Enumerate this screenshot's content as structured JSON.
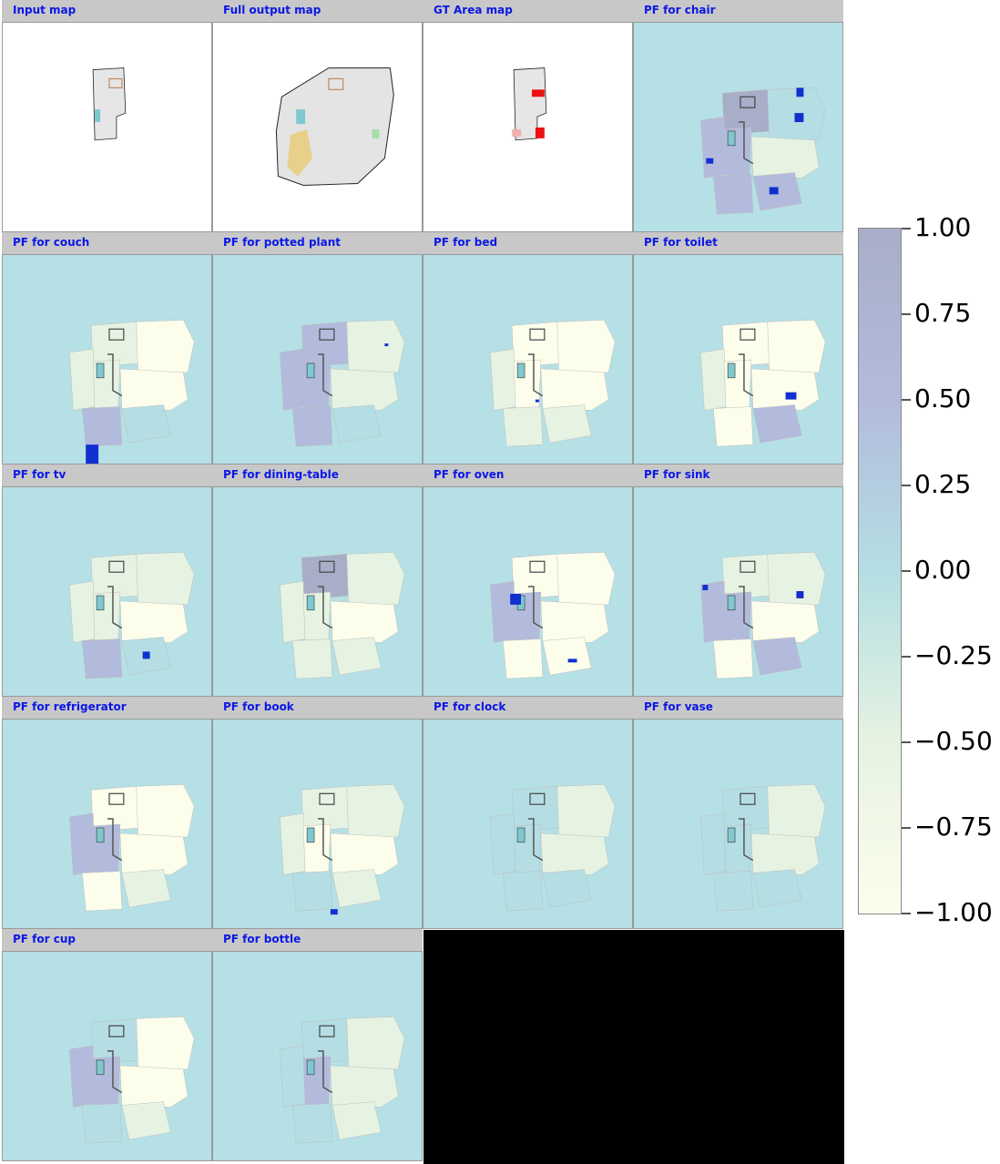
{
  "panels": [
    {
      "title": "Input map",
      "kind": "input",
      "highlight": null
    },
    {
      "title": "Full output map",
      "kind": "full",
      "highlight": null
    },
    {
      "title": "GT Area map",
      "kind": "gt",
      "highlight": null
    },
    {
      "title": "PF for chair",
      "kind": "pf",
      "highlight": "chair"
    },
    {
      "title": "PF for couch",
      "kind": "pf",
      "highlight": "couch"
    },
    {
      "title": "PF for potted plant",
      "kind": "pf",
      "highlight": "plant"
    },
    {
      "title": "PF for bed",
      "kind": "pf",
      "highlight": "bed"
    },
    {
      "title": "PF for toilet",
      "kind": "pf",
      "highlight": "toilet"
    },
    {
      "title": "PF for tv",
      "kind": "pf",
      "highlight": "tv"
    },
    {
      "title": "PF for dining-table",
      "kind": "pf",
      "highlight": "table"
    },
    {
      "title": "PF for oven",
      "kind": "pf",
      "highlight": "oven"
    },
    {
      "title": "PF for sink",
      "kind": "pf",
      "highlight": "sink"
    },
    {
      "title": "PF for refrigerator",
      "kind": "pf",
      "highlight": "fridge"
    },
    {
      "title": "PF for book",
      "kind": "pf",
      "highlight": "book"
    },
    {
      "title": "PF for clock",
      "kind": "pf",
      "highlight": "clock"
    },
    {
      "title": "PF for vase",
      "kind": "pf",
      "highlight": "vase"
    },
    {
      "title": "PF for cup",
      "kind": "pf",
      "highlight": "cup"
    },
    {
      "title": "PF for bottle",
      "kind": "pf",
      "highlight": "bottle"
    }
  ],
  "colorbar": {
    "ticks": [
      "1.00",
      "0.75",
      "0.50",
      "0.25",
      "0.00",
      "−0.25",
      "−0.50",
      "−0.75",
      "−1.00"
    ],
    "range": [
      -1.0,
      1.0
    ],
    "colors": {
      "max": "#a8aec8",
      "high": "#b3bbdc",
      "mid": "#b4dee3",
      "low": "#e6f3e2",
      "min": "#fdfdec"
    }
  },
  "colors": {
    "title_bar": "#c8c8c8",
    "title_text": "#0b17e6",
    "pf_background": "#b5e0e6",
    "map_floor": "#e8e8e8",
    "gt_red": "#ee1111",
    "object_blue": "#1030d0"
  }
}
